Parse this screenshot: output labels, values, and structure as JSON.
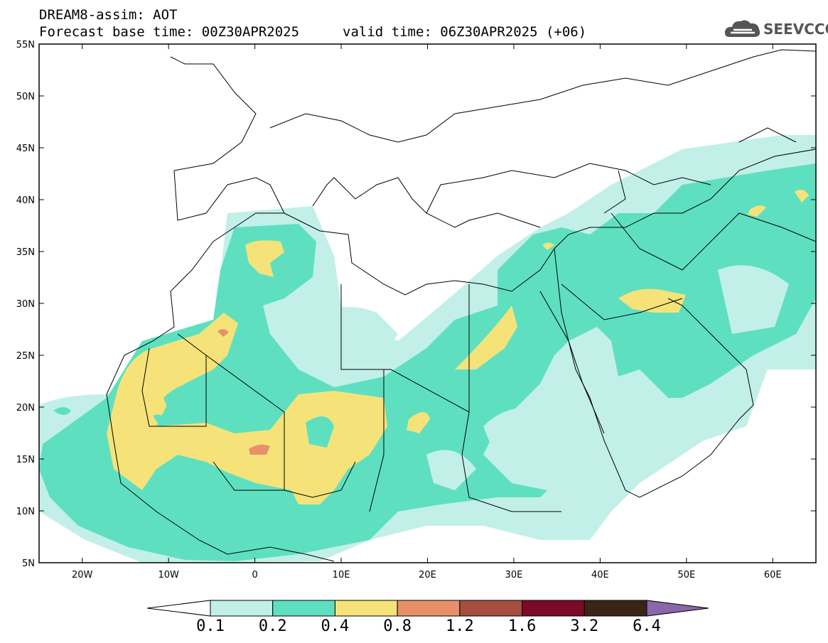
{
  "header": {
    "title": "DREAM8-assim: AOT",
    "base_time": "Forecast base time: 00Z30APR2025",
    "valid_time": "valid time: 06Z30APR2025 (+06)"
  },
  "logo": {
    "text": "SEEVCCC",
    "icon": "cloud-icon"
  },
  "axes": {
    "lat_labels": [
      "55N",
      "50N",
      "45N",
      "40N",
      "35N",
      "30N",
      "25N",
      "20N",
      "15N",
      "10N",
      "5N"
    ],
    "lon_labels": [
      "20W",
      "10W",
      "0",
      "10E",
      "20E",
      "30E",
      "40E",
      "50E",
      "60E"
    ],
    "lat_range": [
      5,
      55
    ],
    "lon_range": [
      -25,
      65
    ]
  },
  "colorbar": {
    "levels": [
      "0.1",
      "0.2",
      "0.4",
      "0.8",
      "1.2",
      "1.6",
      "3.2",
      "6.4"
    ],
    "colors": [
      "#c2f0e8",
      "#5ee0c0",
      "#f5e37a",
      "#e8906a",
      "#a64e40",
      "#7a0a26",
      "#3a2418",
      "#8a67a8"
    ],
    "under_color": "#ffffff",
    "over_color": "#8a67a8"
  }
}
